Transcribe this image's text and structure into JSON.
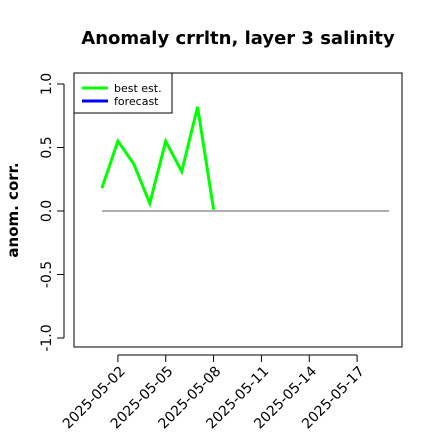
{
  "chart_data": {
    "type": "line",
    "title": "Anomaly crrltn, layer 3 salinity",
    "ylabel": "anom. corr.",
    "xlabel": "",
    "ylim": [
      -1.0,
      1.0
    ],
    "yticks": [
      "-1.0",
      "-0.5",
      "0.0",
      "0.5",
      "1.0"
    ],
    "xticks": [
      "2025-05-02",
      "2025-05-05",
      "2025-05-08",
      "2025-05-11",
      "2025-05-14",
      "2025-05-17"
    ],
    "xlim": [
      "2025-04-30",
      "2025-05-19"
    ],
    "highlight_tick": "2025-05-08",
    "highlight_color": "#228b22",
    "reference_line": {
      "y": 0.0,
      "from": "2025-05-01",
      "to": "2025-05-19",
      "color": "#808080"
    },
    "legend": {
      "position": "top-left",
      "entries": [
        "best est.",
        "forecast"
      ]
    },
    "series": [
      {
        "name": "best est.",
        "color": "#00ff00",
        "x": [
          "2025-05-01",
          "2025-05-02",
          "2025-05-03",
          "2025-05-04",
          "2025-05-05",
          "2025-05-06",
          "2025-05-07",
          "2025-05-08"
        ],
        "values": [
          0.18,
          0.55,
          0.37,
          0.06,
          0.55,
          0.31,
          0.82,
          0.01
        ]
      },
      {
        "name": "forecast",
        "color": "#0000ff",
        "x": [],
        "values": []
      }
    ]
  }
}
